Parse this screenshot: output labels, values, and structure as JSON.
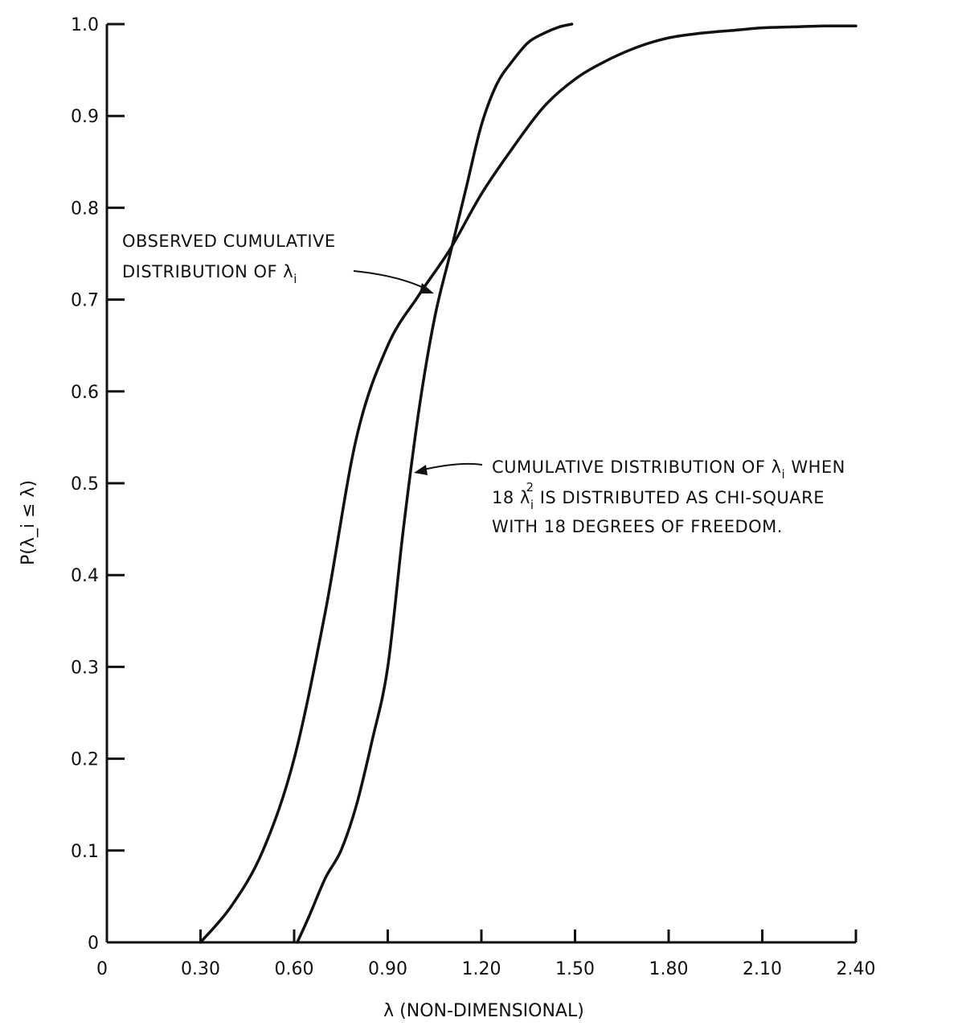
{
  "chart_data": {
    "type": "line",
    "xlabel": "λ (NON-DIMENSIONAL)",
    "ylabel": "P(λ_i ≤ λ)",
    "xlim": [
      0,
      2.4
    ],
    "ylim": [
      0,
      1.0
    ],
    "x_ticks": [
      "0",
      "0.30",
      "0.60",
      "0.90",
      "1.20",
      "1.50",
      "1.80",
      "2.10",
      "2.40"
    ],
    "y_ticks": [
      "0",
      "0.1",
      "0.2",
      "0.3",
      "0.4",
      "0.5",
      "0.6",
      "0.7",
      "0.8",
      "0.9",
      "1.0"
    ],
    "grid": false,
    "series": [
      {
        "x": [
          0.3,
          0.4,
          0.5,
          0.6,
          0.7,
          0.8,
          0.9,
          1.0,
          1.1,
          1.2,
          1.3,
          1.4,
          1.5,
          1.6,
          1.7,
          1.8,
          1.9,
          2.0,
          2.1,
          2.2,
          2.3,
          2.4
        ],
        "values": [
          0.0,
          0.04,
          0.1,
          0.2,
          0.36,
          0.55,
          0.65,
          0.705,
          0.755,
          0.815,
          0.865,
          0.91,
          0.94,
          0.96,
          0.975,
          0.985,
          0.99,
          0.993,
          0.996,
          0.997,
          0.998,
          0.998
        ]
      },
      {
        "x": [
          0.61,
          0.65,
          0.7,
          0.75,
          0.8,
          0.85,
          0.9,
          0.95,
          1.0,
          1.05,
          1.1,
          1.15,
          1.2,
          1.25,
          1.3,
          1.35,
          1.4,
          1.45,
          1.49
        ],
        "values": [
          0.0,
          0.03,
          0.07,
          0.1,
          0.15,
          0.22,
          0.3,
          0.45,
          0.58,
          0.68,
          0.75,
          0.82,
          0.89,
          0.935,
          0.96,
          0.98,
          0.99,
          0.997,
          1.0
        ]
      }
    ],
    "annotations": [
      {
        "lines": [
          "OBSERVED CUMULATIVE",
          "DISTRIBUTION OF λ",
          "i"
        ]
      },
      {
        "lines": [
          "CUMULATIVE DISTRIBUTION OF λ",
          "i",
          " WHEN",
          "18 λ",
          "i",
          "2",
          " IS DISTRIBUTED AS CHI-SQUARE",
          "WITH 18 DEGREES OF FREEDOM."
        ]
      }
    ]
  }
}
